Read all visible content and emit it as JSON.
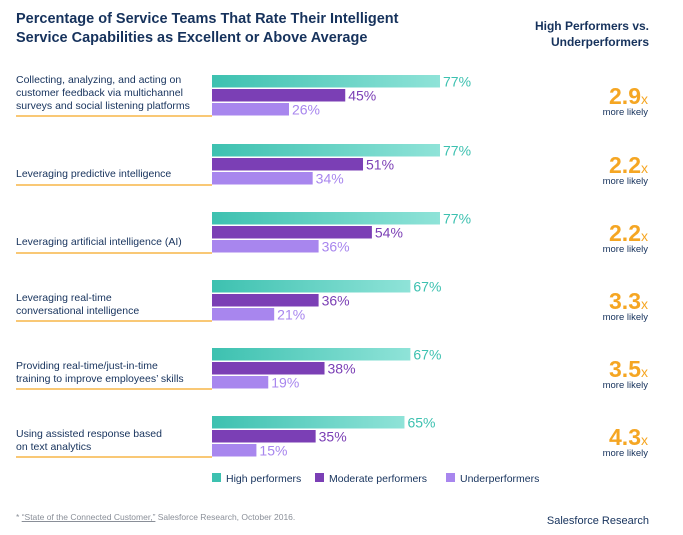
{
  "title_lines": [
    "Percentage of Service Teams That Rate Their Intelligent",
    "Service Capabilities as Excellent or Above Average"
  ],
  "side_title_lines": [
    "High Performers vs.",
    "Underperformers"
  ],
  "footnote": {
    "marker": "*",
    "source_title": "“State of the Connected Customer,”",
    "source_rest": " Salesforce Research, October 2016."
  },
  "brand": "Salesforce Research",
  "colors": {
    "high": "#3dc1b0",
    "high_light": "#8fe3d8",
    "moderate": "#7b3fb5",
    "under": "#a886ee",
    "accent": "#f5a623",
    "label_text": "#16325c",
    "moderate_text": "#7b3fb5",
    "under_text": "#a886ee"
  },
  "chart_data": {
    "type": "bar",
    "orientation": "horizontal",
    "title": "Percentage of Service Teams That Rate Their Intelligent Service Capabilities as Excellent or Above Average",
    "value_suffix": "%",
    "categories": [
      [
        "Collecting, analyzing, and acting on",
        "customer feedback via multichannel",
        "surveys and social listening platforms"
      ],
      [
        "Leveraging predictive intelligence"
      ],
      [
        "Leveraging artificial intelligence (AI)"
      ],
      [
        "Leveraging real-time",
        "conversational intelligence"
      ],
      [
        "Providing real-time/just-in-time",
        "training to improve employees’ skills"
      ],
      [
        "Using assisted response based",
        "on text analytics"
      ]
    ],
    "series": [
      {
        "name": "High performers",
        "values": [
          77,
          77,
          77,
          67,
          67,
          65
        ]
      },
      {
        "name": "Moderate performers",
        "values": [
          45,
          51,
          54,
          36,
          38,
          35
        ]
      },
      {
        "name": "Underperformers",
        "values": [
          26,
          34,
          36,
          21,
          19,
          15
        ]
      }
    ],
    "ratios": {
      "title": "High Performers vs. Underperformers",
      "values": [
        "2.9",
        "2.2",
        "2.2",
        "3.3",
        "3.5",
        "4.3"
      ],
      "suffix": "x",
      "caption": "more likely"
    },
    "legend": {
      "placement": "bottom",
      "entries": [
        "High performers",
        "Moderate performers",
        "Underperformers"
      ]
    }
  }
}
